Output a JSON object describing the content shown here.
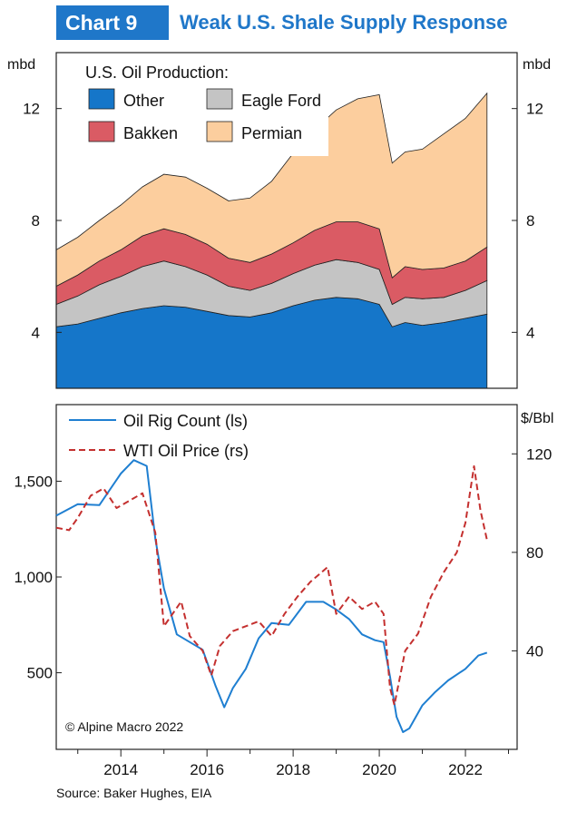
{
  "header": {
    "tag": "Chart 9",
    "title": "Weak U.S. Shale Supply Response"
  },
  "source": "Source: Baker Hughes, EIA",
  "copyright": "© Alpine Macro 2022",
  "colors": {
    "brand": "#1f77c9",
    "other": "#1576c9",
    "eagle_ford": "#c4c4c4",
    "bakken": "#da5b64",
    "permian": "#fcce9e",
    "rig": "#1f7fd1",
    "wti": "#c4302f"
  },
  "chart_data": [
    {
      "type": "area",
      "stacked": true,
      "title": "U.S. Oil Production:",
      "ylabel_left": "mbd",
      "ylabel_right": "mbd",
      "xlim": [
        2012.5,
        2023.2
      ],
      "ylim": [
        2,
        14
      ],
      "yticks": [
        4,
        8,
        12
      ],
      "x": [
        2012.5,
        2013.0,
        2013.5,
        2014.0,
        2014.5,
        2015.0,
        2015.5,
        2016.0,
        2016.5,
        2017.0,
        2017.5,
        2018.0,
        2018.5,
        2019.0,
        2019.5,
        2020.0,
        2020.3,
        2020.6,
        2021.0,
        2021.5,
        2022.0,
        2022.5
      ],
      "series": [
        {
          "name": "Other",
          "values": [
            4.2,
            4.3,
            4.5,
            4.7,
            4.85,
            4.95,
            4.9,
            4.75,
            4.6,
            4.55,
            4.7,
            4.95,
            5.15,
            5.25,
            5.2,
            5.0,
            4.2,
            4.35,
            4.25,
            4.35,
            4.5,
            4.65
          ]
        },
        {
          "name": "Eagle Ford",
          "values": [
            0.8,
            1.0,
            1.2,
            1.3,
            1.5,
            1.6,
            1.45,
            1.3,
            1.05,
            0.95,
            1.05,
            1.15,
            1.25,
            1.35,
            1.3,
            1.25,
            0.8,
            0.9,
            0.95,
            0.9,
            1.0,
            1.2
          ]
        },
        {
          "name": "Bakken",
          "values": [
            0.65,
            0.75,
            0.85,
            0.95,
            1.1,
            1.15,
            1.15,
            1.1,
            1.0,
            1.0,
            1.05,
            1.1,
            1.25,
            1.35,
            1.45,
            1.45,
            0.95,
            1.1,
            1.05,
            1.05,
            1.05,
            1.2
          ]
        },
        {
          "name": "Permian",
          "values": [
            1.3,
            1.35,
            1.45,
            1.6,
            1.75,
            1.95,
            2.05,
            2.0,
            2.05,
            2.3,
            2.6,
            3.2,
            3.6,
            4.0,
            4.4,
            4.8,
            4.1,
            4.1,
            4.3,
            4.8,
            5.1,
            5.5
          ]
        }
      ],
      "legend": [
        "Other",
        "Eagle Ford",
        "Bakken",
        "Permian"
      ]
    },
    {
      "type": "line",
      "ylabel_right": "$/Bbl",
      "xlim": [
        2012.5,
        2023.2
      ],
      "xticks": [
        "2014",
        "2016",
        "2018",
        "2020",
        "2022"
      ],
      "xtick_values": [
        2014,
        2016,
        2018,
        2020,
        2022
      ],
      "y_left_lim": [
        100,
        1900
      ],
      "y_left_ticks": [
        "500",
        "1,000",
        "1,500"
      ],
      "y_left_tick_values": [
        500,
        1000,
        1500
      ],
      "y_right_lim": [
        0,
        140
      ],
      "y_right_ticks": [
        "40",
        "80",
        "120"
      ],
      "y_right_tick_values": [
        40,
        80,
        120
      ],
      "series": [
        {
          "name": "Oil Rig Count (ls)",
          "axis": "left",
          "style": "solid",
          "x": [
            2012.5,
            2013.0,
            2013.5,
            2014.0,
            2014.3,
            2014.6,
            2014.8,
            2015.0,
            2015.3,
            2015.6,
            2015.9,
            2016.2,
            2016.4,
            2016.6,
            2016.9,
            2017.2,
            2017.5,
            2017.9,
            2018.3,
            2018.7,
            2019.0,
            2019.3,
            2019.6,
            2019.9,
            2020.1,
            2020.25,
            2020.4,
            2020.55,
            2020.7,
            2021.0,
            2021.3,
            2021.6,
            2022.0,
            2022.3,
            2022.5
          ],
          "values": [
            1320,
            1380,
            1375,
            1540,
            1610,
            1580,
            1200,
            940,
            700,
            660,
            620,
            430,
            320,
            420,
            520,
            680,
            760,
            750,
            870,
            870,
            830,
            780,
            700,
            670,
            660,
            480,
            270,
            190,
            210,
            330,
            400,
            460,
            520,
            590,
            605
          ]
        },
        {
          "name": "WTI Oil Price (rs)",
          "axis": "right",
          "style": "dashed",
          "x": [
            2012.5,
            2012.8,
            2013.0,
            2013.3,
            2013.6,
            2013.9,
            2014.2,
            2014.5,
            2014.8,
            2015.0,
            2015.2,
            2015.4,
            2015.6,
            2015.9,
            2016.1,
            2016.3,
            2016.6,
            2016.9,
            2017.2,
            2017.5,
            2017.8,
            2018.1,
            2018.4,
            2018.8,
            2019.0,
            2019.3,
            2019.6,
            2019.9,
            2020.1,
            2020.25,
            2020.35,
            2020.6,
            2020.9,
            2021.2,
            2021.5,
            2021.8,
            2022.0,
            2022.2,
            2022.35,
            2022.5
          ],
          "values": [
            90,
            89,
            94,
            103,
            106,
            98,
            101,
            104,
            88,
            50,
            55,
            60,
            46,
            40,
            30,
            42,
            48,
            50,
            52,
            46,
            55,
            62,
            68,
            74,
            55,
            62,
            57,
            60,
            55,
            25,
            18,
            40,
            47,
            62,
            72,
            80,
            92,
            115,
            97,
            85
          ]
        }
      ]
    }
  ]
}
